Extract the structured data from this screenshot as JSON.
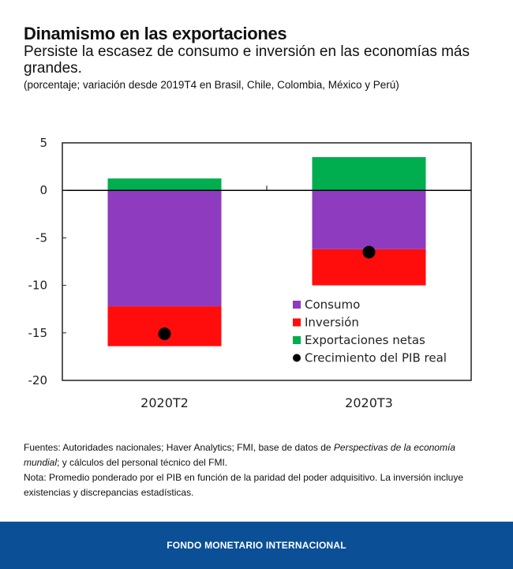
{
  "header": {
    "title": "Dinamismo en las exportaciones",
    "subtitle": "Persiste la escasez de consumo e inversión en las economías más grandes.",
    "units": "(porcentaje; variación desde 2019T4 en Brasil, Chile, Colombia, México y Perú)"
  },
  "notes": {
    "sources_prefix": "Fuentes: Autoridades nacionales; Haver Analytics; FMI, base de datos de ",
    "sources_italic": "Perspectivas de la economía mundial",
    "sources_suffix": "; y cálculos del personal técnico del FMI.",
    "note": "Nota: Promedio ponderado por el PIB en función de la paridad del poder adquisitivo. La inversión incluye existencias y discrepancias estadísticas."
  },
  "footer": {
    "label": "FONDO MONETARIO INTERNACIONAL",
    "color": "#0b4f96"
  },
  "chart_data": {
    "type": "bar",
    "stacked": true,
    "title": "Dinamismo en las exportaciones",
    "xlabel": "",
    "ylabel": "",
    "ylim": [
      -20,
      5
    ],
    "yticks": [
      5,
      0,
      -5,
      -10,
      -15,
      -20
    ],
    "grid": false,
    "legend_position": "bottom-right",
    "categories": [
      "2020T2",
      "2020T3"
    ],
    "series": [
      {
        "name": "Consumo",
        "kind": "bar",
        "color": "#8e3bbf",
        "values": [
          -12.2,
          -6.2
        ]
      },
      {
        "name": "Inversión",
        "kind": "bar",
        "color": "#ff0d0d",
        "values": [
          -4.2,
          -3.8
        ]
      },
      {
        "name": "Exportaciones netas",
        "kind": "bar",
        "color": "#00ad4f",
        "values": [
          1.25,
          3.5
        ]
      },
      {
        "name": "Crecimiento del PIB real",
        "kind": "point",
        "color": "#000000",
        "values": [
          -15.1,
          -6.5
        ]
      }
    ]
  }
}
